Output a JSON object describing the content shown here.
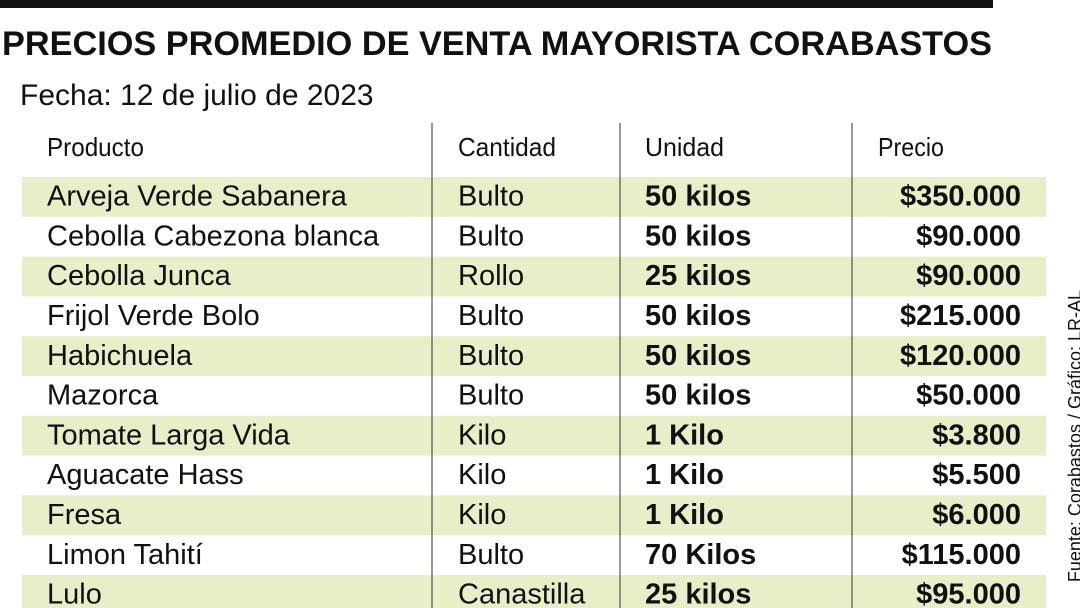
{
  "title": "PRECIOS PROMEDIO DE VENTA MAYORISTA CORABASTOS",
  "subtitle": "Fecha: 12 de julio de 2023",
  "source": "Fuente: Corabastos / Gráfico: LR-AL",
  "table": {
    "columns": [
      "Producto",
      "Cantidad",
      "Unidad",
      "Precio"
    ],
    "rows": [
      [
        "Arveja Verde Sabanera",
        "Bulto",
        "50 kilos",
        "$350.000"
      ],
      [
        "Cebolla Cabezona blanca",
        "Bulto",
        "50 kilos",
        "$90.000"
      ],
      [
        "Cebolla Junca",
        "Rollo",
        "25 kilos",
        "$90.000"
      ],
      [
        "Frijol Verde Bolo",
        "Bulto",
        "50 kilos",
        "$215.000"
      ],
      [
        "Habichuela",
        "Bulto",
        "50 kilos",
        "$120.000"
      ],
      [
        "Mazorca",
        "Bulto",
        "50 kilos",
        "$50.000"
      ],
      [
        "Tomate Larga Vida",
        "Kilo",
        "1 Kilo",
        "$3.800"
      ],
      [
        "Aguacate Hass",
        "Kilo",
        "1 Kilo",
        "$5.500"
      ],
      [
        "Fresa",
        "Kilo",
        "1 Kilo",
        "$6.000"
      ],
      [
        "Limon Tahití",
        "Bulto",
        "70 Kilos",
        "$115.000"
      ],
      [
        "Lulo",
        "Canastilla",
        "25 kilos",
        "$95.000"
      ]
    ]
  }
}
